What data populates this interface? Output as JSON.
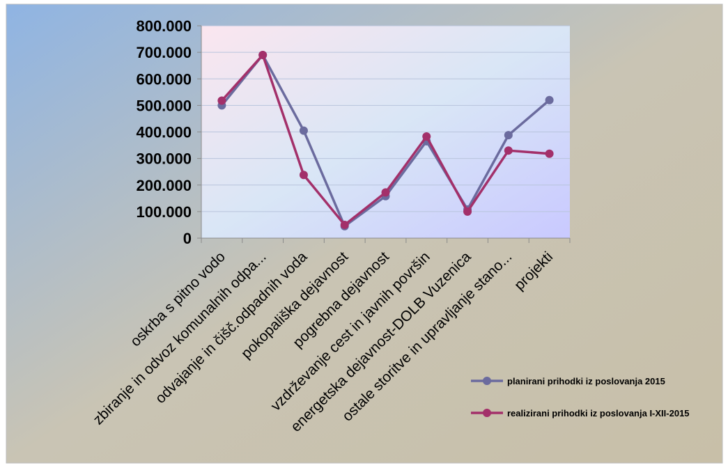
{
  "chart_data": {
    "type": "line",
    "title": "",
    "xlabel": "",
    "ylabel": "",
    "ylim": [
      0,
      800000
    ],
    "yticks": [
      0,
      100000,
      200000,
      300000,
      400000,
      500000,
      600000,
      700000,
      800000
    ],
    "ytick_labels": [
      "0",
      "100.000",
      "200.000",
      "300.000",
      "400.000",
      "500.000",
      "600.000",
      "700.000",
      "800.000"
    ],
    "grid": "horizontal",
    "legend_position": "bottom-right",
    "categories": [
      "oskrba s pitno vodo",
      "zbiranje in odvoz komunalnih odpa...",
      "odvajanje in čišč.odpadnih voda",
      "pokopališka dejavnost",
      "pogrebna dejavnost",
      "vzdrževanje cest in javnih površin",
      "energetska dejavnost-DOLB Vuzenica",
      "ostale storitve in upravljanje stano...",
      "projekti"
    ],
    "series": [
      {
        "name": "planirani prihodki iz poslovanja 2015",
        "color": "#6b6b9e",
        "values": [
          500000,
          690000,
          405000,
          45000,
          158000,
          365000,
          108000,
          388000,
          520000
        ]
      },
      {
        "name": "realizirani prihodki iz poslovanja I-XII-2015",
        "color": "#a3306a",
        "values": [
          518000,
          690000,
          238000,
          50000,
          172000,
          383000,
          100000,
          330000,
          318000
        ]
      }
    ]
  }
}
